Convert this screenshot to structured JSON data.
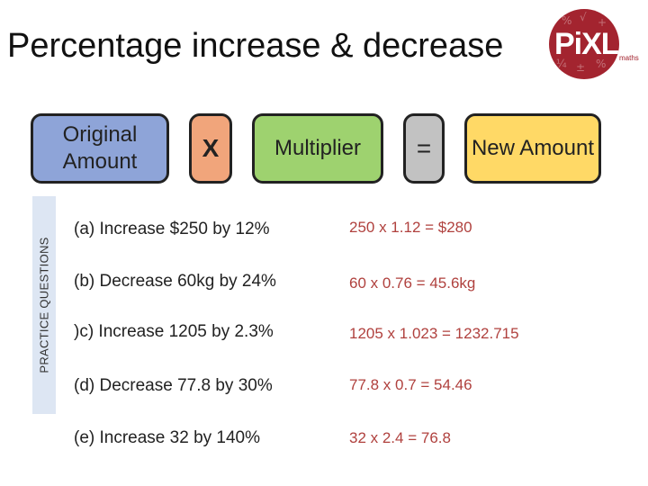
{
  "title": "Percentage increase & decrease",
  "logo": {
    "text": "PiXL",
    "subtext": "maths"
  },
  "formula": {
    "original": "Original Amount",
    "times": "X",
    "multiplier": "Multiplier",
    "equals": "=",
    "new_amount": "New Amount"
  },
  "side_label": "PRACTICE QUESTIONS",
  "questions": [
    {
      "question": "(a) Increase $250 by 12%",
      "answer": "250 x 1.12 = $280"
    },
    {
      "question": "(b) Decrease 60kg by 24%",
      "answer": "60 x 0.76 = 45.6kg"
    },
    {
      "question": ")c) Increase 1205 by 2.3%",
      "answer": "1205 x 1.023 = 1232.715"
    },
    {
      "question": "(d) Decrease 77.8 by 30%",
      "answer": "77.8 x 0.7 = 54.46"
    },
    {
      "question": "(e) Increase 32 by 140%",
      "answer": "32 x 2.4 = 76.8"
    }
  ],
  "colors": {
    "original_box": "#8ea4d8",
    "times_box": "#f1a57b",
    "multiplier_box": "#9ed26f",
    "equals_box": "#c2c2c2",
    "new_amount_box": "#ffd966",
    "answer_text": "#b0413e",
    "logo_bg": "#a3242f"
  }
}
